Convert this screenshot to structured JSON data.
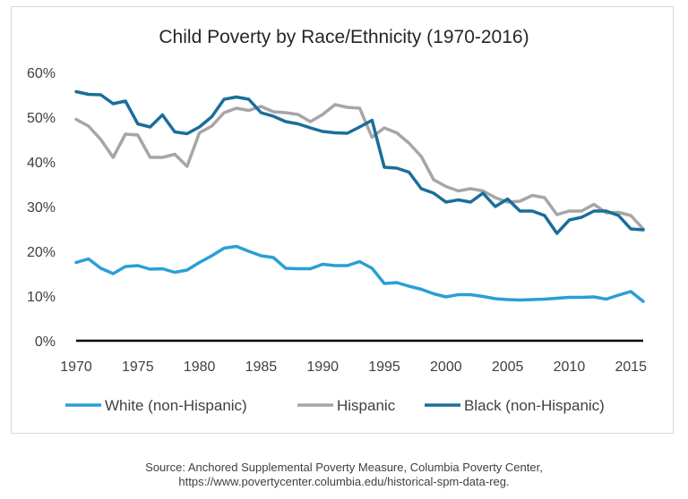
{
  "chart_data": {
    "type": "line",
    "title": "Child Poverty by Race/Ethnicity (1970-2016)",
    "xlabel": "",
    "ylabel": "",
    "xlim": [
      1970,
      2016
    ],
    "ylim": [
      0,
      60
    ],
    "x_ticks": [
      "1970",
      "1975",
      "1980",
      "1985",
      "1990",
      "1995",
      "2000",
      "2005",
      "2010",
      "2015"
    ],
    "y_ticks": [
      "0%",
      "10%",
      "20%",
      "30%",
      "40%",
      "50%",
      "60%"
    ],
    "legend_position": "bottom",
    "grid": false,
    "x": [
      1970,
      1971,
      1972,
      1973,
      1974,
      1975,
      1976,
      1977,
      1978,
      1979,
      1980,
      1981,
      1982,
      1983,
      1984,
      1985,
      1986,
      1987,
      1988,
      1989,
      1990,
      1991,
      1992,
      1993,
      1994,
      1995,
      1996,
      1997,
      1998,
      1999,
      2000,
      2001,
      2002,
      2003,
      2004,
      2005,
      2006,
      2007,
      2008,
      2009,
      2010,
      2011,
      2012,
      2013,
      2014,
      2015,
      2016
    ],
    "series": [
      {
        "name": "White (non-Hispanic)",
        "color": "#2a9fd6",
        "values": [
          17.5,
          18.3,
          16.2,
          15.0,
          16.6,
          16.8,
          16.0,
          16.1,
          15.3,
          15.8,
          17.5,
          19.0,
          20.7,
          21.1,
          20.0,
          19.0,
          18.6,
          16.2,
          16.1,
          16.1,
          17.1,
          16.8,
          16.8,
          17.7,
          16.2,
          12.8,
          13.0,
          12.2,
          11.5,
          10.5,
          9.8,
          10.3,
          10.3,
          9.9,
          9.4,
          9.2,
          9.1,
          9.2,
          9.3,
          9.5,
          9.7,
          9.7,
          9.8,
          9.3,
          10.2,
          11.0,
          8.8
        ]
      },
      {
        "name": "Hispanic",
        "color": "#a6a6a6",
        "values": [
          49.5,
          48.0,
          45.0,
          41.0,
          46.2,
          46.0,
          41.0,
          41.0,
          41.7,
          39.0,
          46.5,
          48.0,
          51.0,
          52.0,
          51.5,
          52.4,
          51.2,
          51.0,
          50.6,
          49.0,
          50.6,
          52.8,
          52.2,
          52.0,
          45.5,
          47.6,
          46.5,
          44.2,
          41.2,
          36.0,
          34.5,
          33.5,
          34.0,
          33.5,
          32.0,
          31.0,
          31.2,
          32.5,
          32.0,
          28.2,
          29.0,
          29.0,
          30.5,
          28.6,
          28.7,
          28.0,
          25.0
        ]
      },
      {
        "name": "Black (non-Hispanic)",
        "color": "#1a6e99",
        "values": [
          55.7,
          55.1,
          55.0,
          53.0,
          53.6,
          48.5,
          47.8,
          50.5,
          46.7,
          46.3,
          47.8,
          50.1,
          54.0,
          54.5,
          54.0,
          51.0,
          50.2,
          49.0,
          48.5,
          47.6,
          46.8,
          46.5,
          46.4,
          47.8,
          49.3,
          38.8,
          38.6,
          37.7,
          34.0,
          33.0,
          31.0,
          31.5,
          31.0,
          33.0,
          30.0,
          31.7,
          29.0,
          29.0,
          28.0,
          24.0,
          27.0,
          27.6,
          29.0,
          29.0,
          28.0,
          25.0,
          24.8
        ]
      }
    ]
  },
  "source": {
    "line1": "Source: Anchored Supplemental Poverty Measure, Columbia Poverty Center,",
    "line2": "https://www.povertycenter.columbia.edu/historical-spm-data-reg."
  }
}
